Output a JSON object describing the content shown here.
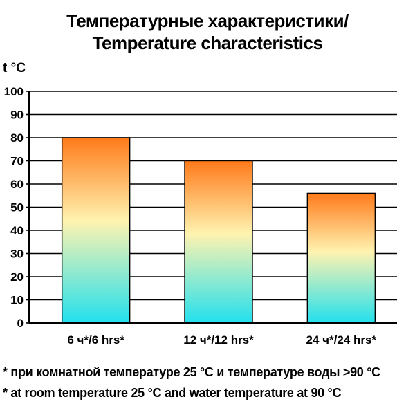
{
  "title_line1": "Температурные характеристики/",
  "title_line2": "Temperature characteristics",
  "footnote_ru": "* при комнатной температуре 25 °C и температуре воды >90 °C",
  "footnote_en": "* at room temperature 25 °C and water temperature at 90 °C",
  "chart_data": {
    "type": "bar",
    "title": "Температурные характеристики/ Temperature characteristics",
    "ylabel": "t °C",
    "xlabel": "",
    "categories": [
      "6 ч*/6 hrs*",
      "12 ч*/12 hrs*",
      "24 ч*/24 hrs*"
    ],
    "values": [
      80,
      70,
      56
    ],
    "ylim": [
      0,
      100
    ],
    "yticks": [
      0,
      10,
      20,
      30,
      40,
      50,
      60,
      70,
      80,
      90,
      100
    ],
    "grid": true,
    "bar_gradient": {
      "top": "#ff7a1a",
      "middle": "#fff3b0",
      "bottom": "#22e0ee"
    },
    "gridline_color": "#000000"
  }
}
